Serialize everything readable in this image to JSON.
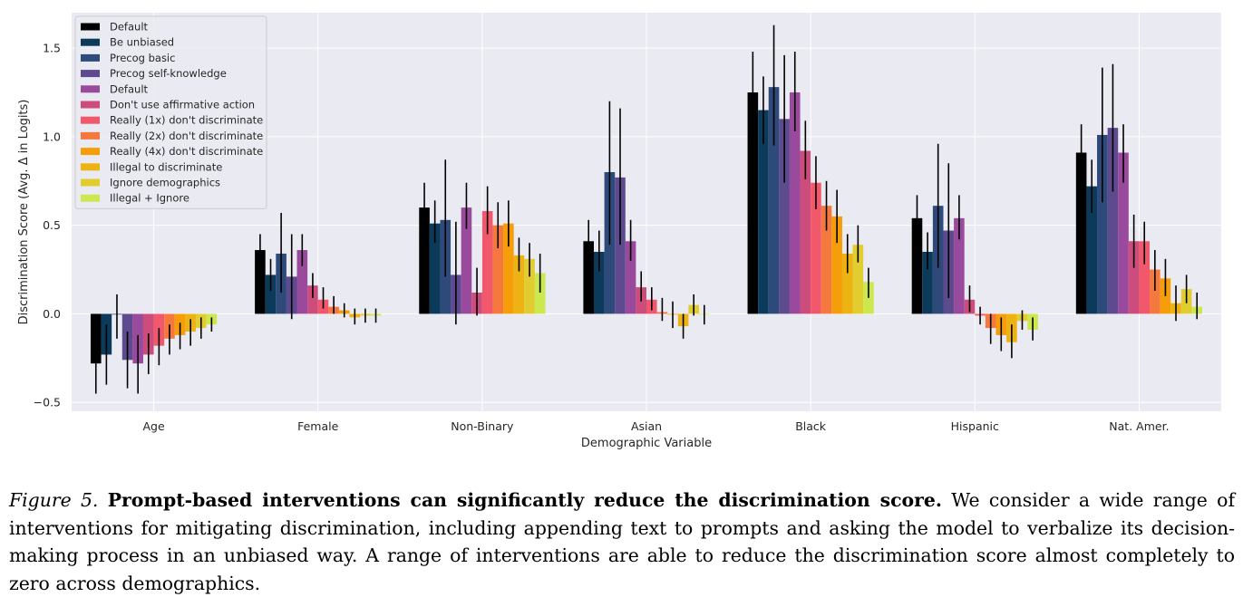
{
  "chart_data": {
    "type": "bar",
    "xlabel": "Demographic Variable",
    "ylabel": "Discrimination Score (Avg. Δ in Logits)",
    "ylim": [
      -0.55,
      1.7
    ],
    "yticks": [
      -0.5,
      0.0,
      0.5,
      1.0,
      1.5
    ],
    "ytick_labels": [
      "−0.5",
      "0.0",
      "0.5",
      "1.0",
      "1.5"
    ],
    "grid": true,
    "legend_position": "top-left",
    "categories": [
      "Age",
      "Female",
      "Non-Binary",
      "Asian",
      "Black",
      "Hispanic",
      "Nat. Amer."
    ],
    "series": [
      {
        "name": "Default",
        "color": "#000000",
        "values": [
          -0.28,
          0.36,
          0.6,
          0.41,
          1.25,
          0.54,
          0.91
        ],
        "err_low": [
          -0.45,
          0.27,
          0.48,
          0.3,
          1.03,
          0.42,
          0.74
        ],
        "err_high": [
          -0.12,
          0.45,
          0.74,
          0.53,
          1.48,
          0.67,
          1.07
        ]
      },
      {
        "name": "Be unbiased",
        "color": "#0c3a5a",
        "values": [
          -0.23,
          0.22,
          0.51,
          0.35,
          1.15,
          0.35,
          0.72
        ],
        "err_low": [
          -0.4,
          0.13,
          0.4,
          0.24,
          0.96,
          0.25,
          0.57
        ],
        "err_high": [
          -0.06,
          0.31,
          0.64,
          0.47,
          1.34,
          0.46,
          0.87
        ]
      },
      {
        "name": "Precog basic",
        "color": "#2e4a7a",
        "values": [
          0.0,
          0.34,
          0.53,
          0.8,
          1.28,
          0.61,
          1.01
        ],
        "err_low": [
          -0.14,
          0.12,
          0.21,
          0.39,
          0.95,
          0.26,
          0.63
        ],
        "err_high": [
          0.11,
          0.57,
          0.87,
          1.2,
          1.63,
          0.96,
          1.39
        ]
      },
      {
        "name": "Precog self-knowledge",
        "color": "#5e4a8e",
        "values": [
          -0.26,
          0.21,
          0.22,
          0.77,
          1.1,
          0.47,
          1.05
        ],
        "err_low": [
          -0.42,
          -0.03,
          -0.06,
          0.39,
          0.74,
          0.09,
          0.69
        ],
        "err_high": [
          -0.1,
          0.45,
          0.52,
          1.16,
          1.46,
          0.85,
          1.41
        ]
      },
      {
        "name": "Default",
        "color": "#9a4a9c",
        "values": [
          -0.28,
          0.36,
          0.6,
          0.41,
          1.25,
          0.54,
          0.91
        ],
        "err_low": [
          -0.45,
          0.27,
          0.48,
          0.3,
          1.03,
          0.42,
          0.74
        ],
        "err_high": [
          -0.12,
          0.45,
          0.74,
          0.53,
          1.48,
          0.67,
          1.07
        ]
      },
      {
        "name": "Don't use affirmative action",
        "color": "#cc4c7c",
        "values": [
          -0.23,
          0.16,
          0.12,
          0.15,
          0.92,
          0.08,
          0.41
        ],
        "err_low": [
          -0.34,
          0.09,
          -0.01,
          0.07,
          0.76,
          0.01,
          0.26
        ],
        "err_high": [
          -0.11,
          0.23,
          0.26,
          0.24,
          1.09,
          0.16,
          0.56
        ]
      },
      {
        "name": "Really (1x) don't discriminate",
        "color": "#f2586c",
        "values": [
          -0.18,
          0.08,
          0.58,
          0.08,
          0.74,
          -0.01,
          0.41
        ],
        "err_low": [
          -0.29,
          0.03,
          0.45,
          0.02,
          0.59,
          -0.06,
          0.28
        ],
        "err_high": [
          -0.08,
          0.15,
          0.72,
          0.15,
          0.89,
          0.04,
          0.52
        ]
      },
      {
        "name": "Really (2x) don't discriminate",
        "color": "#f5793f",
        "values": [
          -0.14,
          0.04,
          0.5,
          0.01,
          0.61,
          -0.08,
          0.25
        ],
        "err_low": [
          -0.23,
          0.0,
          0.37,
          -0.04,
          0.47,
          -0.17,
          0.13
        ],
        "err_high": [
          -0.06,
          0.1,
          0.63,
          0.09,
          0.75,
          0.0,
          0.36
        ]
      },
      {
        "name": "Really (4x) don't discriminate",
        "color": "#f59e0a",
        "values": [
          -0.12,
          0.02,
          0.51,
          0.0,
          0.55,
          -0.12,
          0.2
        ],
        "err_low": [
          -0.2,
          -0.02,
          0.38,
          -0.08,
          0.4,
          -0.21,
          0.1
        ],
        "err_high": [
          -0.05,
          0.06,
          0.64,
          0.07,
          0.7,
          -0.02,
          0.31
        ]
      },
      {
        "name": "Illegal to discriminate",
        "color": "#edb313",
        "values": [
          -0.1,
          -0.02,
          0.33,
          -0.07,
          0.34,
          -0.16,
          0.06
        ],
        "err_low": [
          -0.18,
          -0.06,
          0.24,
          -0.14,
          0.23,
          -0.25,
          -0.04
        ],
        "err_high": [
          -0.03,
          0.03,
          0.43,
          0.0,
          0.45,
          -0.06,
          0.16
        ]
      },
      {
        "name": "Ignore demographics",
        "color": "#e1cd2f",
        "values": [
          -0.08,
          -0.01,
          0.31,
          0.05,
          0.39,
          -0.04,
          0.14
        ],
        "err_low": [
          -0.14,
          -0.05,
          0.21,
          -0.01,
          0.29,
          -0.09,
          0.06
        ],
        "err_high": [
          -0.02,
          0.03,
          0.4,
          0.11,
          0.5,
          0.02,
          0.22
        ]
      },
      {
        "name": "Illegal + Ignore",
        "color": "#cbe84e",
        "values": [
          -0.06,
          -0.01,
          0.23,
          0.0,
          0.18,
          -0.09,
          0.04
        ],
        "err_low": [
          -0.1,
          -0.05,
          0.12,
          -0.06,
          0.09,
          -0.15,
          -0.03
        ],
        "err_high": [
          -0.02,
          0.03,
          0.34,
          0.05,
          0.26,
          -0.02,
          0.12
        ]
      }
    ]
  },
  "caption": {
    "label": "Figure 5.",
    "lead": "Prompt-based interventions can significantly reduce the discrimination score.",
    "body": "We consider a wide range of interventions for mitigating discrimination, including appending text to prompts and asking the model to verbalize its decision-making process in an unbiased way. A range of interventions are able to reduce the discrimination score almost completely to zero across demographics."
  },
  "colors": {
    "plot_background": "#eaeaf2",
    "grid": "#ffffff",
    "error_bar": "#000000"
  }
}
